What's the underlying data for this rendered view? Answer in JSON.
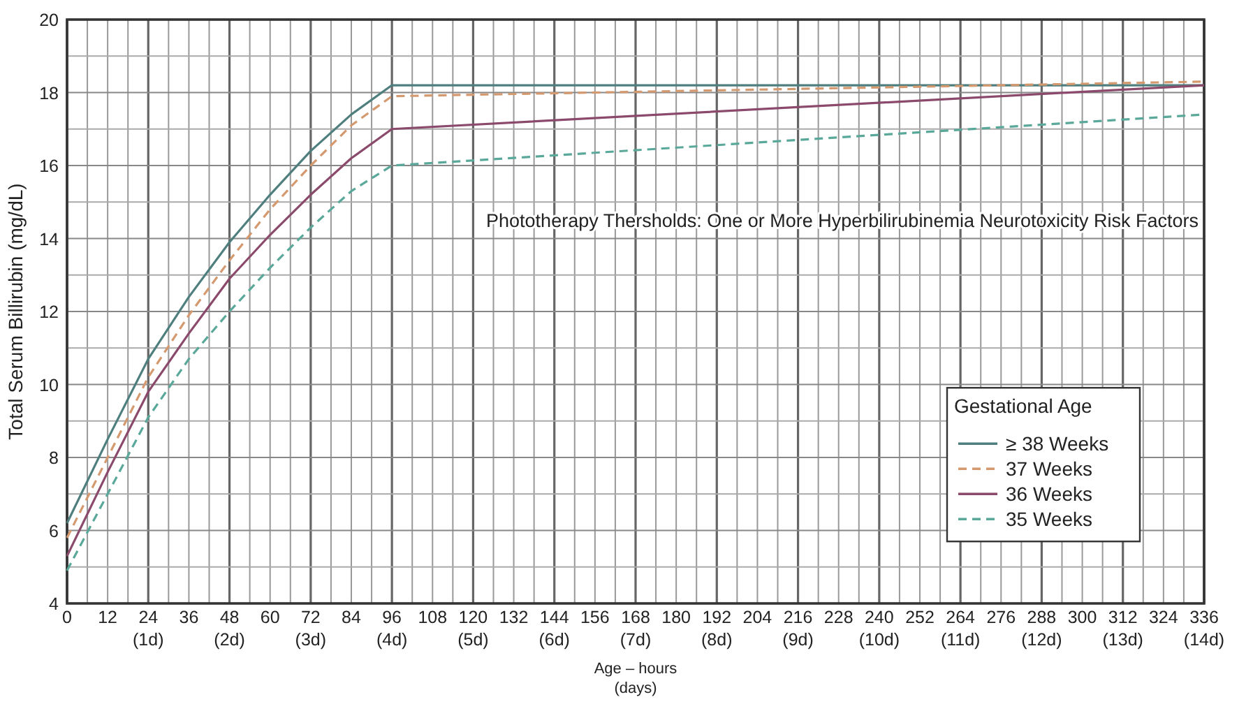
{
  "chart_data": {
    "type": "line",
    "xlabel": "Age – hours\n(days)",
    "ylabel": "Total Serum Billirubin (mg/dL)",
    "legend_title": "Gestational Age",
    "legend": "bottom right",
    "grid": true,
    "annotations": [
      "Phototherapy Thersholds: One or More Hyperbilirubinemia Neurotoxicity Risk Factors"
    ],
    "xlim": [
      0,
      336
    ],
    "ylim": [
      4,
      20
    ],
    "xticks": [
      0,
      {
        "value": 6,
        "label": null
      },
      12,
      {
        "value": 18,
        "label": null
      },
      {
        "value": 24,
        "label": "24\n(1d)"
      },
      {
        "value": 30,
        "label": null
      },
      36,
      {
        "value": 42,
        "label": null
      },
      {
        "value": 48,
        "label": "48\n(2d)"
      },
      {
        "value": 54,
        "label": null
      },
      60,
      {
        "value": 66,
        "label": null
      },
      {
        "value": 72,
        "label": "72\n(3d)"
      },
      {
        "value": 78,
        "label": null
      },
      84,
      {
        "value": 90,
        "label": null
      },
      {
        "value": 96,
        "label": "96\n(4d)"
      },
      {
        "value": 102,
        "label": null
      },
      108,
      {
        "value": 114,
        "label": null
      },
      {
        "value": 120,
        "label": "120\n(5d)"
      },
      {
        "value": 126,
        "label": null
      },
      132,
      {
        "value": 138,
        "label": null
      },
      {
        "value": 144,
        "label": "144\n(6d)"
      },
      {
        "value": 150,
        "label": null
      },
      156,
      {
        "value": 162,
        "label": null
      },
      {
        "value": 168,
        "label": "168\n(7d)"
      },
      {
        "value": 174,
        "label": null
      },
      180,
      {
        "value": 186,
        "label": null
      },
      {
        "value": 192,
        "label": "192\n(8d)"
      },
      {
        "value": 198,
        "label": null
      },
      204,
      {
        "value": 210,
        "label": null
      },
      {
        "value": 216,
        "label": "216\n(9d)"
      },
      {
        "value": 222,
        "label": null
      },
      228,
      {
        "value": 234,
        "label": null
      },
      {
        "value": 240,
        "label": "240\n(10d)"
      },
      {
        "value": 246,
        "label": null
      },
      252,
      {
        "value": 258,
        "label": null
      },
      {
        "value": 264,
        "label": "264\n(11d)"
      },
      {
        "value": 270,
        "label": null
      },
      276,
      {
        "value": 282,
        "label": null
      },
      {
        "value": 288,
        "label": "288\n(12d)"
      },
      {
        "value": 294,
        "label": null
      },
      300,
      {
        "value": 306,
        "label": null
      },
      {
        "value": 312,
        "label": "312\n(13d)"
      },
      {
        "value": 318,
        "label": null
      },
      324,
      {
        "value": 330,
        "label": null
      },
      {
        "value": 336,
        "label": "336\n(14d)"
      }
    ],
    "yticks": [
      4,
      {
        "value": 5,
        "label": null
      },
      6,
      {
        "value": 7,
        "label": null
      },
      8,
      {
        "value": 9,
        "label": null
      },
      10,
      {
        "value": 11,
        "label": null
      },
      12,
      {
        "value": 13,
        "label": null
      },
      14,
      {
        "value": 15,
        "label": null
      },
      16,
      {
        "value": 17,
        "label": null
      },
      18,
      {
        "value": 19,
        "label": null
      },
      20
    ],
    "series": [
      {
        "name": "≥ 38 Weeks",
        "color": "#4e7f7e",
        "line_style": "solid",
        "x": [
          0,
          12,
          24,
          36,
          48,
          60,
          72,
          84,
          96,
          336
        ],
        "values": [
          6.2,
          8.5,
          10.7,
          12.4,
          13.9,
          15.2,
          16.4,
          17.4,
          18.2,
          18.2
        ]
      },
      {
        "name": "37 Weeks",
        "color": "#d4996e",
        "line_style": "dashed",
        "x": [
          0,
          12,
          24,
          36,
          48,
          60,
          72,
          84,
          96,
          216,
          336
        ],
        "values": [
          5.8,
          8.0,
          10.2,
          11.9,
          13.4,
          14.8,
          16.0,
          17.1,
          17.9,
          18.1,
          18.3
        ]
      },
      {
        "name": "36 Weeks",
        "color": "#8b4a6b",
        "line_style": "solid",
        "x": [
          0,
          12,
          24,
          36,
          48,
          60,
          72,
          84,
          96,
          336
        ],
        "values": [
          5.3,
          7.6,
          9.8,
          11.4,
          12.9,
          14.1,
          15.2,
          16.2,
          17.0,
          18.2
        ]
      },
      {
        "name": "35 Weeks",
        "color": "#5aa89a",
        "line_style": "dashed",
        "x": [
          0,
          12,
          24,
          36,
          48,
          60,
          72,
          84,
          96,
          336
        ],
        "values": [
          4.9,
          7.0,
          9.1,
          10.7,
          12.0,
          13.2,
          14.3,
          15.3,
          16.0,
          17.4
        ]
      }
    ]
  }
}
